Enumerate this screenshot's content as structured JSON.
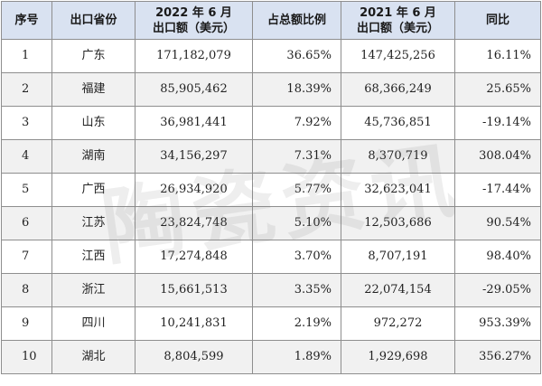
{
  "table": {
    "headers": {
      "index": "序号",
      "province": "出口省份",
      "export_2022_line1": "2022 年 6 月",
      "export_2022_line2": "出口额（美元）",
      "share": "占总额比例",
      "export_2021_line1": "2021 年 6 月",
      "export_2021_line2": "出口额（美元）",
      "yoy": "同比"
    },
    "rows": [
      {
        "index": "1",
        "province": "广东",
        "export_2022": "171,182,079",
        "share": "36.65%",
        "export_2021": "147,425,256",
        "yoy": "16.11%"
      },
      {
        "index": "2",
        "province": "福建",
        "export_2022": "85,905,462",
        "share": "18.39%",
        "export_2021": "68,366,249",
        "yoy": "25.65%"
      },
      {
        "index": "3",
        "province": "山东",
        "export_2022": "36,981,441",
        "share": "7.92%",
        "export_2021": "45,736,851",
        "yoy": "-19.14%"
      },
      {
        "index": "4",
        "province": "湖南",
        "export_2022": "34,156,297",
        "share": "7.31%",
        "export_2021": "8,370,719",
        "yoy": "308.04%"
      },
      {
        "index": "5",
        "province": "广西",
        "export_2022": "26,934,920",
        "share": "5.77%",
        "export_2021": "32,623,041",
        "yoy": "-17.44%"
      },
      {
        "index": "6",
        "province": "江苏",
        "export_2022": "23,824,748",
        "share": "5.10%",
        "export_2021": "12,503,686",
        "yoy": "90.54%"
      },
      {
        "index": "7",
        "province": "江西",
        "export_2022": "17,274,848",
        "share": "3.70%",
        "export_2021": "8,707,191",
        "yoy": "98.40%"
      },
      {
        "index": "8",
        "province": "浙江",
        "export_2022": "15,661,513",
        "share": "3.35%",
        "export_2021": "22,074,154",
        "yoy": "-29.05%"
      },
      {
        "index": "9",
        "province": "四川",
        "export_2022": "10,241,831",
        "share": "2.19%",
        "export_2021": "972,272",
        "yoy": "953.39%"
      },
      {
        "index": "10",
        "province": "湖北",
        "export_2022": "8,804,599",
        "share": "1.89%",
        "export_2021": "1,929,698",
        "yoy": "356.27%"
      }
    ]
  },
  "watermark": {
    "text": "陶瓷资讯"
  },
  "colors": {
    "header_bg": "#d9e2f1",
    "alt_row_bg": "#f1f1f1",
    "border": "#8e8e8e"
  }
}
